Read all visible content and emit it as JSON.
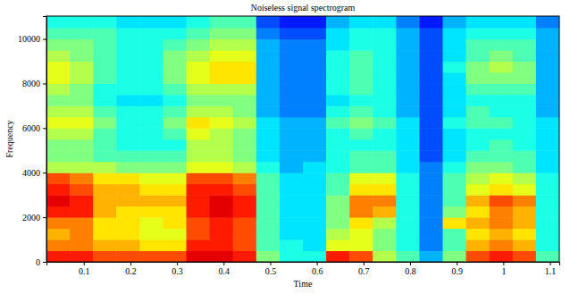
{
  "chart_data": {
    "type": "heatmap",
    "title": "Noiseless signal spectrogram",
    "x_label": "Time",
    "y_label": "Frequency",
    "xlim": [
      0.02,
      1.12
    ],
    "ylim": [
      0,
      11025
    ],
    "xticks": [
      0.1,
      0.2,
      0.3,
      0.4,
      0.5,
      0.6,
      0.7,
      0.8,
      0.9,
      1,
      1.1
    ],
    "yticks": [
      0,
      2000,
      4000,
      6000,
      8000,
      10000
    ],
    "x_edges": [
      0.02,
      0.07,
      0.12,
      0.17,
      0.22,
      0.27,
      0.32,
      0.37,
      0.42,
      0.47,
      0.52,
      0.57,
      0.62,
      0.67,
      0.72,
      0.77,
      0.82,
      0.87,
      0.92,
      0.97,
      1.02,
      1.07,
      1.12
    ],
    "y_edges": [
      0,
      500,
      1000,
      1500,
      2000,
      2500,
      3000,
      3500,
      4000,
      4500,
      5000,
      5500,
      6000,
      6500,
      7000,
      7500,
      8000,
      8500,
      9000,
      9500,
      10000,
      10500,
      11025
    ],
    "zlim": [
      0,
      10
    ],
    "cells": [
      [
        8.5,
        8.5,
        8,
        8,
        8,
        8,
        9,
        9,
        8.5,
        5,
        4,
        4,
        8.5,
        8,
        5.5,
        4.5,
        3,
        5,
        8,
        8.5,
        8,
        4.5
      ],
      [
        7.5,
        7.5,
        7,
        7,
        6.5,
        6.5,
        8.5,
        8.5,
        8,
        4.5,
        4,
        3.5,
        6,
        6,
        5,
        4,
        2.5,
        4.5,
        7,
        7.5,
        7,
        4
      ],
      [
        7,
        7.5,
        6.5,
        6.5,
        6,
        6,
        8,
        8.5,
        8,
        4.5,
        3.5,
        3.5,
        5.5,
        6,
        5,
        4,
        2.5,
        4.5,
        6.5,
        7,
        6.5,
        4
      ],
      [
        7.5,
        7.5,
        6.5,
        6.5,
        6,
        6.5,
        8,
        8.5,
        8,
        4.5,
        3.5,
        3.5,
        5,
        6.5,
        5.5,
        4,
        2.5,
        6.5,
        7,
        7.5,
        7,
        4
      ],
      [
        8.5,
        8.5,
        7,
        6.5,
        6.5,
        6.5,
        8.5,
        9,
        8.5,
        4.5,
        3.5,
        3.5,
        5,
        7.5,
        7,
        4,
        2.5,
        5,
        6.5,
        7.5,
        7,
        4
      ],
      [
        9,
        8.5,
        7,
        7,
        7,
        7,
        8.5,
        9,
        8.5,
        4.5,
        3.5,
        3.5,
        5,
        7.5,
        7.5,
        4,
        2.5,
        4.5,
        7,
        8,
        7.5,
        4
      ],
      [
        8.5,
        8,
        7,
        7,
        6.5,
        6.5,
        8.5,
        8.5,
        8,
        4.5,
        3.5,
        3.5,
        4.5,
        6.5,
        6.5,
        4,
        2.5,
        4.5,
        6,
        6.5,
        6,
        4
      ],
      [
        8,
        7.5,
        6.5,
        6.5,
        6,
        6,
        8,
        8,
        7.5,
        4.5,
        3.5,
        3.5,
        4.5,
        6,
        6,
        4,
        2.5,
        4.5,
        5.5,
        6,
        5.5,
        4
      ],
      [
        5.5,
        5.5,
        5.5,
        5,
        5,
        5,
        6,
        6,
        5.5,
        4,
        3,
        3.5,
        4,
        4.5,
        4.5,
        3.5,
        2.5,
        4,
        5,
        5,
        4.5,
        3.5
      ],
      [
        5,
        5,
        4.5,
        4.5,
        4.5,
        4.5,
        5.5,
        5.5,
        5,
        3.5,
        3,
        3,
        4,
        4.5,
        4.5,
        3.5,
        2,
        3.5,
        4.5,
        4.5,
        4.5,
        3.5
      ],
      [
        5,
        5,
        4.5,
        4,
        4,
        4,
        5.5,
        5.5,
        5,
        3.5,
        3,
        3,
        4,
        4,
        4,
        3.5,
        2,
        3.5,
        4,
        4.5,
        4,
        3.5
      ],
      [
        5.5,
        5.5,
        4.5,
        4,
        4,
        4.5,
        6,
        5.5,
        5,
        3.5,
        3,
        3,
        4,
        4.5,
        4,
        3.5,
        2,
        3.5,
        4,
        4,
        4,
        3.5
      ],
      [
        6,
        6,
        5,
        4,
        4,
        5,
        6.5,
        6,
        5.5,
        3.5,
        3,
        3,
        4.5,
        5,
        4.5,
        3.5,
        2,
        4,
        4.5,
        4.5,
        4,
        3.5
      ],
      [
        5.5,
        5.5,
        4.5,
        4,
        4,
        4.5,
        5.5,
        5.5,
        5,
        3,
        2.5,
        2.5,
        4,
        4.5,
        4,
        3,
        2,
        3.5,
        4.5,
        4,
        4,
        3
      ],
      [
        5,
        5,
        4,
        3.5,
        3.5,
        4,
        5,
        5,
        5,
        3,
        2.5,
        2.5,
        3.5,
        4,
        4,
        3,
        2,
        3.5,
        4,
        4,
        4,
        3
      ],
      [
        5.5,
        5,
        4,
        4,
        4,
        4.5,
        5.5,
        5.5,
        5.5,
        3,
        2.5,
        2.5,
        4,
        4.5,
        4,
        3,
        2,
        3.5,
        4.5,
        4.5,
        4.5,
        3
      ],
      [
        6,
        5.5,
        4.5,
        4,
        4,
        5,
        6,
        6.5,
        6.5,
        3,
        2.5,
        2.5,
        4,
        4.5,
        4,
        3,
        2,
        3.5,
        5,
        5,
        5,
        3
      ],
      [
        6,
        5.5,
        4.5,
        4,
        4,
        5,
        6,
        6.5,
        6.5,
        3,
        2.5,
        2.5,
        4,
        4.5,
        4,
        3,
        2,
        4,
        5,
        5.5,
        5,
        3
      ],
      [
        5.5,
        5,
        4.5,
        4,
        4,
        5,
        5.5,
        6,
        6,
        3,
        2.5,
        2.5,
        4,
        4.5,
        4,
        3,
        2,
        3.5,
        4.5,
        5,
        4.5,
        3
      ],
      [
        5,
        5,
        4.5,
        4,
        4,
        4.5,
        5,
        5.5,
        5.5,
        3,
        2.5,
        2.5,
        3.5,
        4,
        4,
        3,
        2,
        3.5,
        4.5,
        4.5,
        4.5,
        3
      ],
      [
        4.5,
        4.5,
        4.5,
        4,
        4,
        4,
        4.5,
        5,
        5,
        2.5,
        2,
        2,
        3.5,
        4,
        4,
        3,
        2,
        3.5,
        4,
        4,
        4,
        3
      ],
      [
        4,
        4,
        4,
        3.5,
        3.5,
        3.5,
        4,
        4.5,
        4.5,
        2,
        1.5,
        1.5,
        3,
        3.5,
        3.5,
        2.5,
        1.5,
        3,
        3.5,
        3.5,
        3.5,
        2.5
      ]
    ]
  }
}
